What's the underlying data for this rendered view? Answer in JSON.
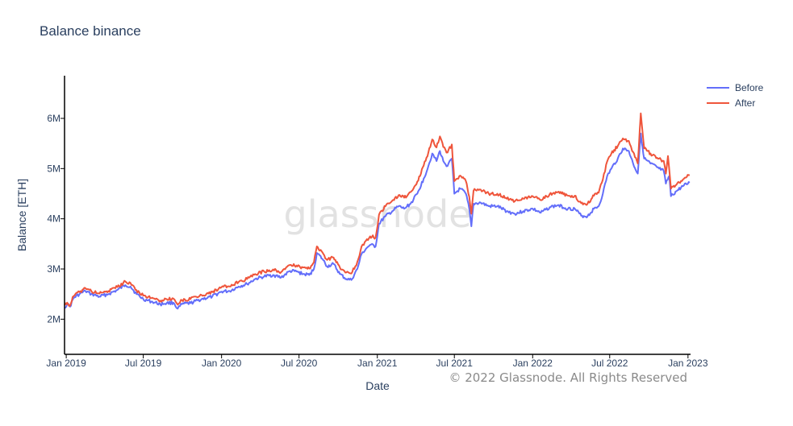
{
  "chart_data": {
    "type": "line",
    "title": "Balance binance",
    "xlabel": "Date",
    "ylabel": "Balance [ETH]",
    "watermark": "glassnode",
    "copyright": "© 2022 Glassnode. All Rights Reserved",
    "x_range": [
      "2018-12-28",
      "2023-01-07"
    ],
    "ylim": [
      1300000,
      6850000
    ],
    "y_ticks": [
      {
        "value": 2000000,
        "label": "2M"
      },
      {
        "value": 3000000,
        "label": "3M"
      },
      {
        "value": 4000000,
        "label": "4M"
      },
      {
        "value": 5000000,
        "label": "5M"
      },
      {
        "value": 6000000,
        "label": "6M"
      }
    ],
    "x_ticks": [
      {
        "value": "2019-01-01",
        "label": "Jan 2019"
      },
      {
        "value": "2019-07-01",
        "label": "Jul 2019"
      },
      {
        "value": "2020-01-01",
        "label": "Jan 2020"
      },
      {
        "value": "2020-07-01",
        "label": "Jul 2020"
      },
      {
        "value": "2021-01-01",
        "label": "Jan 2021"
      },
      {
        "value": "2021-07-01",
        "label": "Jul 2021"
      },
      {
        "value": "2022-01-01",
        "label": "Jan 2022"
      },
      {
        "value": "2022-07-01",
        "label": "Jul 2022"
      },
      {
        "value": "2023-01-01",
        "label": "Jan 2023"
      }
    ],
    "grid": false,
    "legend_position": "top-right",
    "series": [
      {
        "name": "Before",
        "color": "#636efa",
        "points": [
          [
            "2018-12-28",
            2230000
          ],
          [
            "2019-01-03",
            2300000
          ],
          [
            "2019-01-10",
            2250000
          ],
          [
            "2019-01-18",
            2420000
          ],
          [
            "2019-02-01",
            2500000
          ],
          [
            "2019-02-15",
            2560000
          ],
          [
            "2019-03-01",
            2500000
          ],
          [
            "2019-03-20",
            2450000
          ],
          [
            "2019-04-10",
            2500000
          ],
          [
            "2019-05-01",
            2580000
          ],
          [
            "2019-05-20",
            2680000
          ],
          [
            "2019-06-01",
            2650000
          ],
          [
            "2019-06-15",
            2500000
          ],
          [
            "2019-07-01",
            2400000
          ],
          [
            "2019-07-20",
            2350000
          ],
          [
            "2019-08-10",
            2300000
          ],
          [
            "2019-08-25",
            2320000
          ],
          [
            "2019-09-10",
            2330000
          ],
          [
            "2019-09-20",
            2210000
          ],
          [
            "2019-09-30",
            2300000
          ],
          [
            "2019-10-20",
            2320000
          ],
          [
            "2019-11-15",
            2400000
          ],
          [
            "2019-12-10",
            2450000
          ],
          [
            "2020-01-01",
            2550000
          ],
          [
            "2020-01-20",
            2560000
          ],
          [
            "2020-02-10",
            2650000
          ],
          [
            "2020-03-01",
            2700000
          ],
          [
            "2020-03-20",
            2800000
          ],
          [
            "2020-04-10",
            2850000
          ],
          [
            "2020-05-01",
            2880000
          ],
          [
            "2020-05-20",
            2830000
          ],
          [
            "2020-06-10",
            2960000
          ],
          [
            "2020-06-25",
            2950000
          ],
          [
            "2020-07-10",
            2900000
          ],
          [
            "2020-07-25",
            2880000
          ],
          [
            "2020-08-05",
            3000000
          ],
          [
            "2020-08-12",
            3320000
          ],
          [
            "2020-08-25",
            3200000
          ],
          [
            "2020-09-05",
            3050000
          ],
          [
            "2020-09-20",
            3100000
          ],
          [
            "2020-10-05",
            2900000
          ],
          [
            "2020-10-20",
            2800000
          ],
          [
            "2020-11-01",
            2780000
          ],
          [
            "2020-11-15",
            3000000
          ],
          [
            "2020-11-25",
            3300000
          ],
          [
            "2020-12-05",
            3400000
          ],
          [
            "2020-12-15",
            3480000
          ],
          [
            "2020-12-28",
            3450000
          ],
          [
            "2021-01-05",
            3900000
          ],
          [
            "2021-01-20",
            4050000
          ],
          [
            "2021-02-05",
            4150000
          ],
          [
            "2021-02-20",
            4250000
          ],
          [
            "2021-03-05",
            4200000
          ],
          [
            "2021-03-20",
            4300000
          ],
          [
            "2021-04-05",
            4500000
          ],
          [
            "2021-04-20",
            4800000
          ],
          [
            "2021-05-01",
            5050000
          ],
          [
            "2021-05-10",
            5300000
          ],
          [
            "2021-05-20",
            5150000
          ],
          [
            "2021-05-28",
            5350000
          ],
          [
            "2021-06-05",
            5150000
          ],
          [
            "2021-06-15",
            5050000
          ],
          [
            "2021-06-25",
            5200000
          ],
          [
            "2021-07-01",
            4500000
          ],
          [
            "2021-07-15",
            4600000
          ],
          [
            "2021-07-28",
            4500000
          ],
          [
            "2021-08-05",
            4200000
          ],
          [
            "2021-08-10",
            3850000
          ],
          [
            "2021-08-15",
            4300000
          ],
          [
            "2021-09-01",
            4320000
          ],
          [
            "2021-09-20",
            4250000
          ],
          [
            "2021-10-10",
            4250000
          ],
          [
            "2021-11-01",
            4150000
          ],
          [
            "2021-11-20",
            4100000
          ],
          [
            "2021-12-10",
            4150000
          ],
          [
            "2022-01-01",
            4200000
          ],
          [
            "2022-01-20",
            4120000
          ],
          [
            "2022-02-10",
            4230000
          ],
          [
            "2022-03-01",
            4270000
          ],
          [
            "2022-03-25",
            4200000
          ],
          [
            "2022-04-10",
            4200000
          ],
          [
            "2022-04-25",
            4060000
          ],
          [
            "2022-05-10",
            4050000
          ],
          [
            "2022-05-25",
            4200000
          ],
          [
            "2022-06-05",
            4250000
          ],
          [
            "2022-06-15",
            4500000
          ],
          [
            "2022-06-25",
            4850000
          ],
          [
            "2022-07-05",
            5000000
          ],
          [
            "2022-07-20",
            5200000
          ],
          [
            "2022-08-01",
            5400000
          ],
          [
            "2022-08-15",
            5350000
          ],
          [
            "2022-08-25",
            5100000
          ],
          [
            "2022-09-05",
            4900000
          ],
          [
            "2022-09-12",
            5700000
          ],
          [
            "2022-09-20",
            5200000
          ],
          [
            "2022-10-05",
            5100000
          ],
          [
            "2022-10-25",
            5000000
          ],
          [
            "2022-11-05",
            4950000
          ],
          [
            "2022-11-10",
            4700000
          ],
          [
            "2022-11-18",
            4850000
          ],
          [
            "2022-11-22",
            4450000
          ],
          [
            "2022-12-05",
            4550000
          ],
          [
            "2022-12-20",
            4650000
          ],
          [
            "2023-01-05",
            4720000
          ]
        ]
      },
      {
        "name": "After",
        "color": "#ef553b",
        "points": [
          [
            "2018-12-28",
            2280000
          ],
          [
            "2019-01-03",
            2330000
          ],
          [
            "2019-01-10",
            2270000
          ],
          [
            "2019-01-18",
            2460000
          ],
          [
            "2019-02-01",
            2540000
          ],
          [
            "2019-02-15",
            2620000
          ],
          [
            "2019-03-01",
            2560000
          ],
          [
            "2019-03-20",
            2510000
          ],
          [
            "2019-04-10",
            2560000
          ],
          [
            "2019-05-01",
            2640000
          ],
          [
            "2019-05-20",
            2750000
          ],
          [
            "2019-06-01",
            2720000
          ],
          [
            "2019-06-15",
            2580000
          ],
          [
            "2019-07-01",
            2470000
          ],
          [
            "2019-07-20",
            2420000
          ],
          [
            "2019-08-10",
            2370000
          ],
          [
            "2019-08-25",
            2400000
          ],
          [
            "2019-09-10",
            2410000
          ],
          [
            "2019-09-20",
            2290000
          ],
          [
            "2019-09-30",
            2380000
          ],
          [
            "2019-10-20",
            2400000
          ],
          [
            "2019-11-15",
            2480000
          ],
          [
            "2019-12-10",
            2540000
          ],
          [
            "2020-01-01",
            2640000
          ],
          [
            "2020-01-20",
            2650000
          ],
          [
            "2020-02-10",
            2740000
          ],
          [
            "2020-03-01",
            2800000
          ],
          [
            "2020-03-20",
            2900000
          ],
          [
            "2020-04-10",
            2950000
          ],
          [
            "2020-05-01",
            2990000
          ],
          [
            "2020-05-20",
            2940000
          ],
          [
            "2020-06-10",
            3080000
          ],
          [
            "2020-06-25",
            3070000
          ],
          [
            "2020-07-10",
            3030000
          ],
          [
            "2020-07-25",
            3010000
          ],
          [
            "2020-08-05",
            3130000
          ],
          [
            "2020-08-12",
            3450000
          ],
          [
            "2020-08-25",
            3330000
          ],
          [
            "2020-09-05",
            3180000
          ],
          [
            "2020-09-20",
            3230000
          ],
          [
            "2020-10-05",
            3030000
          ],
          [
            "2020-10-20",
            2930000
          ],
          [
            "2020-11-01",
            2910000
          ],
          [
            "2020-11-15",
            3140000
          ],
          [
            "2020-11-25",
            3450000
          ],
          [
            "2020-12-05",
            3560000
          ],
          [
            "2020-12-15",
            3650000
          ],
          [
            "2020-12-28",
            3630000
          ],
          [
            "2021-01-05",
            4080000
          ],
          [
            "2021-01-20",
            4250000
          ],
          [
            "2021-02-05",
            4360000
          ],
          [
            "2021-02-20",
            4470000
          ],
          [
            "2021-03-05",
            4420000
          ],
          [
            "2021-03-20",
            4530000
          ],
          [
            "2021-04-05",
            4740000
          ],
          [
            "2021-04-20",
            5060000
          ],
          [
            "2021-05-01",
            5320000
          ],
          [
            "2021-05-10",
            5580000
          ],
          [
            "2021-05-20",
            5420000
          ],
          [
            "2021-05-28",
            5640000
          ],
          [
            "2021-06-05",
            5430000
          ],
          [
            "2021-06-15",
            5320000
          ],
          [
            "2021-06-25",
            5480000
          ],
          [
            "2021-07-01",
            4750000
          ],
          [
            "2021-07-15",
            4860000
          ],
          [
            "2021-07-28",
            4750000
          ],
          [
            "2021-08-05",
            4440000
          ],
          [
            "2021-08-10",
            4100000
          ],
          [
            "2021-08-15",
            4560000
          ],
          [
            "2021-09-01",
            4580000
          ],
          [
            "2021-09-20",
            4500000
          ],
          [
            "2021-10-10",
            4500000
          ],
          [
            "2021-11-01",
            4400000
          ],
          [
            "2021-11-20",
            4350000
          ],
          [
            "2021-12-10",
            4400000
          ],
          [
            "2022-01-01",
            4450000
          ],
          [
            "2022-01-20",
            4370000
          ],
          [
            "2022-02-10",
            4490000
          ],
          [
            "2022-03-01",
            4530000
          ],
          [
            "2022-03-25",
            4460000
          ],
          [
            "2022-04-10",
            4460000
          ],
          [
            "2022-04-25",
            4310000
          ],
          [
            "2022-05-10",
            4300000
          ],
          [
            "2022-05-25",
            4460000
          ],
          [
            "2022-06-05",
            4520000
          ],
          [
            "2022-06-15",
            4780000
          ],
          [
            "2022-06-25",
            5140000
          ],
          [
            "2022-07-05",
            5300000
          ],
          [
            "2022-07-20",
            5450000
          ],
          [
            "2022-08-01",
            5600000
          ],
          [
            "2022-08-15",
            5550000
          ],
          [
            "2022-08-25",
            5330000
          ],
          [
            "2022-09-05",
            5100000
          ],
          [
            "2022-09-12",
            6100000
          ],
          [
            "2022-09-20",
            5400000
          ],
          [
            "2022-10-05",
            5300000
          ],
          [
            "2022-10-25",
            5200000
          ],
          [
            "2022-11-05",
            5150000
          ],
          [
            "2022-11-10",
            4900000
          ],
          [
            "2022-11-15",
            5250000
          ],
          [
            "2022-11-22",
            4600000
          ],
          [
            "2022-12-05",
            4680000
          ],
          [
            "2022-12-20",
            4780000
          ],
          [
            "2023-01-05",
            4870000
          ]
        ]
      }
    ]
  }
}
